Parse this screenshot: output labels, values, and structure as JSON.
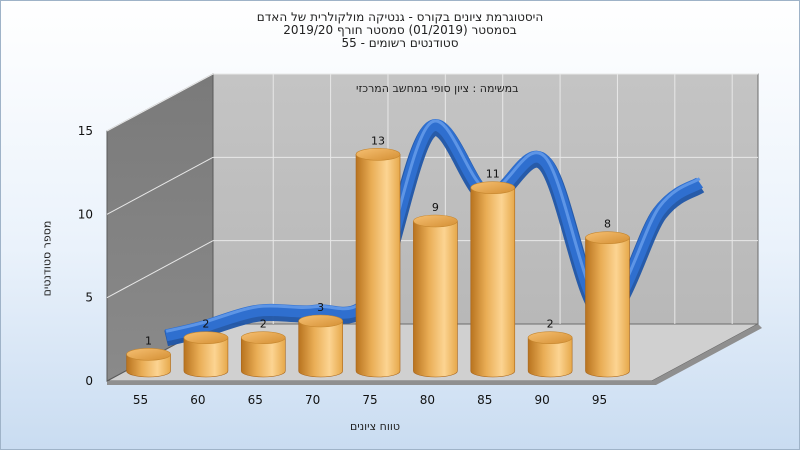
{
  "chart_data": {
    "type": "bar",
    "title_lines": [
      "היסטוגרמת ציונים בקורס - גנטיקה מולקולרית של האדם",
      "בסמסטר  (01/2019)  סמסטר חורף 2019/20",
      "סטודנטים רשומים - 55"
    ],
    "annotation": "במשימה : ציון סופי במחשב המרכזי",
    "xlabel": "טווח ציונים",
    "ylabel": "מספר סטודנטים",
    "x_ticks": [
      "55",
      "60",
      "65",
      "70",
      "75",
      "80",
      "85",
      "90",
      "95"
    ],
    "y_ticks": [
      "0",
      "5",
      "10",
      "15"
    ],
    "ylim": [
      0,
      15
    ],
    "bars": [
      {
        "x": 55,
        "value": 1
      },
      {
        "x": 60,
        "value": 2
      },
      {
        "x": 65,
        "value": 2
      },
      {
        "x": 70,
        "value": 3
      },
      {
        "x": 75,
        "value": 13
      },
      {
        "x": 80,
        "value": 9
      },
      {
        "x": 85,
        "value": 11
      },
      {
        "x": 90,
        "value": 2
      },
      {
        "x": 95,
        "value": 8
      }
    ],
    "curve": {
      "type": "line",
      "color": "#2f6fcf",
      "values": [
        1,
        2,
        2,
        3,
        13,
        9,
        11,
        2,
        8
      ]
    },
    "bar_color": "#e6a84a",
    "grid": true,
    "legend": "none"
  }
}
